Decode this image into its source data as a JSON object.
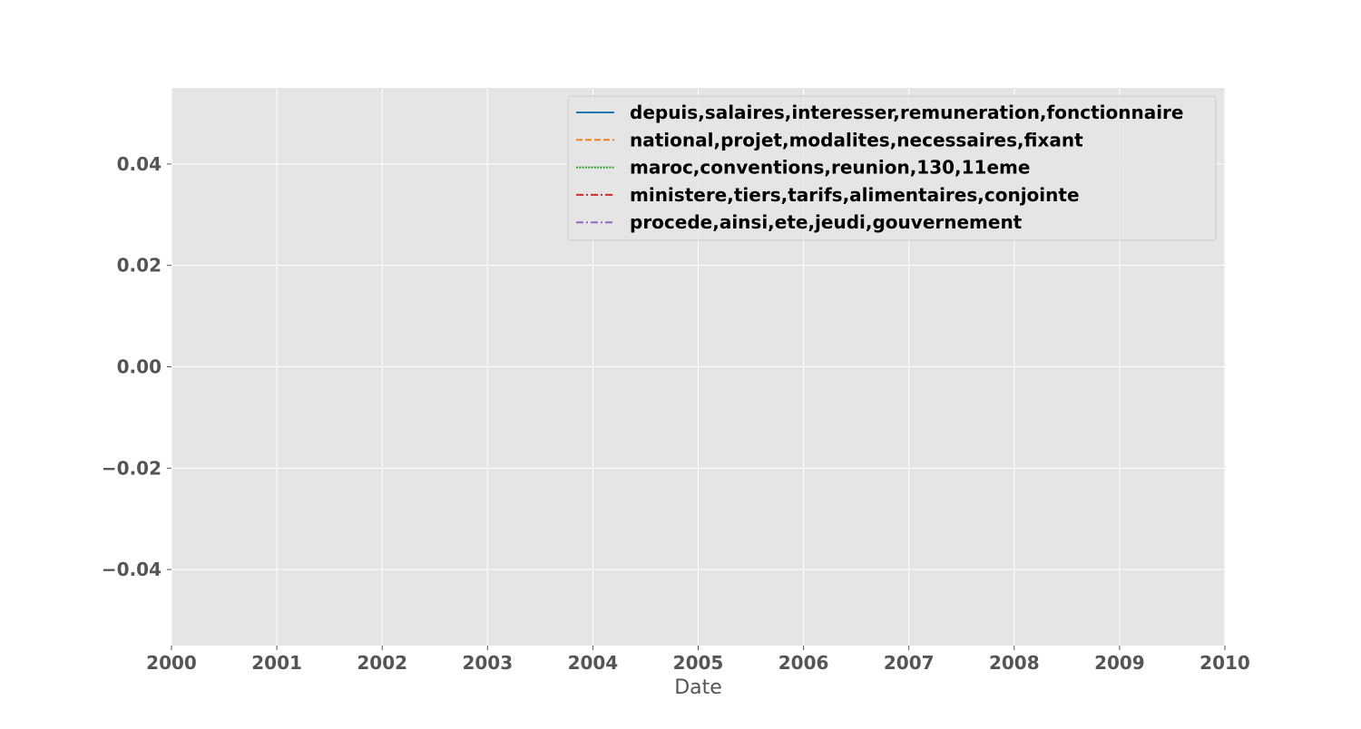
{
  "chart_data": {
    "type": "line",
    "title": "",
    "xlabel": "Date",
    "ylabel": "",
    "x_ticks": [
      "2000",
      "2001",
      "2002",
      "2003",
      "2004",
      "2005",
      "2006",
      "2007",
      "2008",
      "2009",
      "2010"
    ],
    "y_ticks": [
      "0.04",
      "0.02",
      "0.00",
      "−0.02",
      "−0.04"
    ],
    "y_tick_values": [
      0.04,
      0.02,
      0.0,
      -0.02,
      -0.04
    ],
    "xlim": [
      "2000",
      "2010"
    ],
    "ylim": [
      -0.055,
      0.055
    ],
    "grid": true,
    "background": "#e5e5e5",
    "grid_color": "#ffffff",
    "legend_position": "top-right",
    "series": [
      {
        "name": "depuis,salaires,interesser,remuneration,fonctionnaire",
        "color": "#1f77b4",
        "linestyle": "solid",
        "x": [],
        "values": []
      },
      {
        "name": "national,projet,modalites,necessaires,fixant",
        "color": "#ff7f0e",
        "linestyle": "dashed",
        "x": [],
        "values": []
      },
      {
        "name": "maroc,conventions,reunion,130,11eme",
        "color": "#2ca02c",
        "linestyle": "dotted",
        "x": [],
        "values": []
      },
      {
        "name": "ministere,tiers,tarifs,alimentaires,conjointe",
        "color": "#d62728",
        "linestyle": "dashdot",
        "x": [],
        "values": []
      },
      {
        "name": "procede,ainsi,ete,jeudi,gouvernement",
        "color": "#9467bd",
        "linestyle": "dashdot",
        "x": [],
        "values": []
      }
    ]
  }
}
